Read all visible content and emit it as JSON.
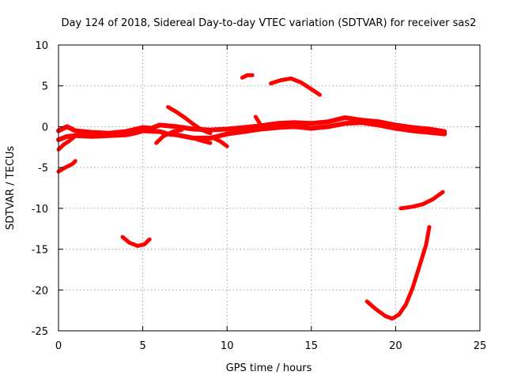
{
  "chart_data": {
    "type": "scatter",
    "title": "Day 124 of 2018, Sidereal Day-to-day VTEC variation (SDTVAR) for receiver sas2",
    "xlabel": "GPS time / hours",
    "ylabel": "SDTVAR / TECUs",
    "xlim": [
      0,
      25
    ],
    "ylim": [
      -25,
      10
    ],
    "xticks": [
      0,
      5,
      10,
      15,
      20,
      25
    ],
    "yticks": [
      -25,
      -20,
      -15,
      -10,
      -5,
      0,
      5,
      10
    ],
    "grid": true,
    "color": "#ff0000",
    "series": [
      {
        "name": "main-band-upper",
        "points": [
          [
            0,
            -0.5
          ],
          [
            0.5,
            0
          ],
          [
            1,
            -0.5
          ],
          [
            2,
            -0.7
          ],
          [
            3,
            -0.8
          ],
          [
            4,
            -0.6
          ],
          [
            5,
            -0.1
          ],
          [
            5.5,
            -0.2
          ],
          [
            6,
            0.2
          ],
          [
            7,
            0
          ],
          [
            8,
            -0.3
          ],
          [
            9,
            -0.4
          ],
          [
            10,
            -0.3
          ],
          [
            11,
            -0.1
          ],
          [
            12,
            0.1
          ],
          [
            13,
            0.4
          ],
          [
            14,
            0.5
          ],
          [
            15,
            0.4
          ],
          [
            16,
            0.6
          ],
          [
            17,
            1.1
          ],
          [
            18,
            0.8
          ],
          [
            19,
            0.6
          ],
          [
            20,
            0.2
          ],
          [
            21,
            -0.1
          ],
          [
            22,
            -0.3
          ],
          [
            22.9,
            -0.6
          ]
        ]
      },
      {
        "name": "main-band-lower",
        "points": [
          [
            0,
            -1.6
          ],
          [
            0.5,
            -1.2
          ],
          [
            1,
            -1.1
          ],
          [
            2,
            -1.2
          ],
          [
            3,
            -1.1
          ],
          [
            4,
            -1
          ],
          [
            4.5,
            -0.8
          ],
          [
            5,
            -0.5
          ],
          [
            6,
            -0.6
          ],
          [
            6.5,
            -0.9
          ],
          [
            7,
            -1
          ],
          [
            7.5,
            -1.2
          ],
          [
            8,
            -1.4
          ],
          [
            9,
            -1.4
          ],
          [
            10,
            -0.9
          ],
          [
            11,
            -0.6
          ],
          [
            12,
            -0.3
          ],
          [
            13,
            -0.1
          ],
          [
            14,
            0
          ],
          [
            15,
            -0.2
          ],
          [
            16,
            0
          ],
          [
            17,
            0.4
          ],
          [
            18,
            0.5
          ],
          [
            19,
            0.2
          ],
          [
            20,
            -0.2
          ],
          [
            21,
            -0.5
          ],
          [
            22,
            -0.7
          ],
          [
            22.9,
            -0.9
          ]
        ]
      },
      {
        "name": "segment-0",
        "points": [
          [
            0,
            -2.8
          ],
          [
            0.3,
            -2.2
          ],
          [
            0.6,
            -1.8
          ],
          [
            0.9,
            -1.3
          ]
        ]
      },
      {
        "name": "segment-1",
        "points": [
          [
            0,
            -5.5
          ],
          [
            0.4,
            -5
          ],
          [
            0.8,
            -4.6
          ],
          [
            1,
            -4.2
          ]
        ]
      },
      {
        "name": "segment-2",
        "points": [
          [
            3.8,
            -13.5
          ],
          [
            4.2,
            -14.2
          ],
          [
            4.7,
            -14.6
          ],
          [
            5.1,
            -14.4
          ],
          [
            5.4,
            -13.8
          ]
        ]
      },
      {
        "name": "segment-3",
        "points": [
          [
            6.5,
            2.4
          ],
          [
            7,
            1.8
          ],
          [
            7.5,
            1.1
          ],
          [
            8,
            0.3
          ],
          [
            8.5,
            -0.4
          ],
          [
            9,
            -0.8
          ]
        ]
      },
      {
        "name": "segment-4",
        "points": [
          [
            5.8,
            -2
          ],
          [
            6.2,
            -1.2
          ],
          [
            6.8,
            -0.6
          ],
          [
            7.3,
            -0.4
          ]
        ]
      },
      {
        "name": "segment-5",
        "points": [
          [
            9.2,
            -1.4
          ],
          [
            9.6,
            -1.8
          ],
          [
            10,
            -2.4
          ]
        ]
      },
      {
        "name": "segment-6",
        "points": [
          [
            8,
            -1.4
          ],
          [
            8.6,
            -1.8
          ],
          [
            9,
            -2
          ]
        ]
      },
      {
        "name": "segment-7",
        "points": [
          [
            10.9,
            6
          ],
          [
            11.2,
            6.3
          ],
          [
            11.5,
            6.3
          ]
        ]
      },
      {
        "name": "segment-8",
        "points": [
          [
            12.6,
            5.3
          ],
          [
            13.2,
            5.7
          ],
          [
            13.8,
            5.9
          ],
          [
            14.4,
            5.4
          ],
          [
            15,
            4.6
          ],
          [
            15.5,
            3.9
          ]
        ]
      },
      {
        "name": "segment-9",
        "points": [
          [
            11.7,
            1.2
          ],
          [
            12,
            0.2
          ],
          [
            12.3,
            0
          ]
        ]
      },
      {
        "name": "segment-10",
        "points": [
          [
            18.3,
            -21.4
          ],
          [
            18.8,
            -22.3
          ],
          [
            19.4,
            -23.2
          ],
          [
            19.8,
            -23.5
          ],
          [
            20.2,
            -23
          ],
          [
            20.6,
            -21.8
          ],
          [
            21,
            -19.8
          ],
          [
            21.4,
            -17.2
          ],
          [
            21.8,
            -14.5
          ],
          [
            22,
            -12.3
          ]
        ]
      },
      {
        "name": "segment-11",
        "points": [
          [
            20.3,
            -10
          ],
          [
            21,
            -9.8
          ],
          [
            21.6,
            -9.5
          ],
          [
            22.2,
            -8.9
          ],
          [
            22.8,
            -8
          ]
        ]
      }
    ]
  }
}
